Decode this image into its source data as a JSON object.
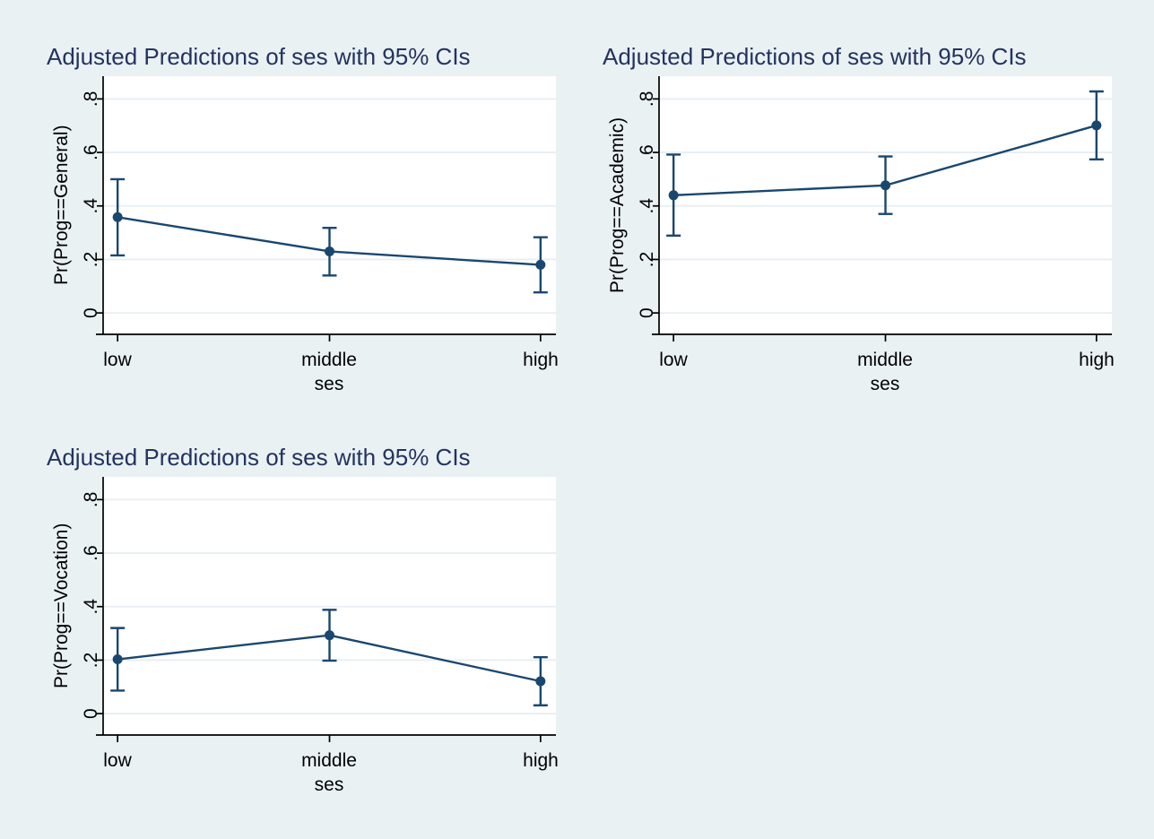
{
  "style": {
    "page_background": "#e9f1f3",
    "plot_background": "#ffffff",
    "grid_color": "#e7eef3",
    "axis_color": "#000000",
    "text_color": "#000000",
    "title_color": "#24335f",
    "series_color": "#1a476f"
  },
  "chart_data": [
    {
      "type": "line",
      "title": "Adjusted Predictions of ses with 95% CIs",
      "ylabel": "Pr(Prog==General)",
      "xlabel": "ses",
      "categories": [
        "low",
        "middle",
        "high"
      ],
      "series": [
        {
          "name": "Adjusted prediction",
          "values": [
            0.358,
            0.23,
            0.18
          ],
          "ci_low": [
            0.215,
            0.14,
            0.077
          ],
          "ci_high": [
            0.5,
            0.318,
            0.283
          ]
        }
      ],
      "ci_level": "95%",
      "yticks": [
        0,
        0.2,
        0.4,
        0.6,
        0.8
      ],
      "ytick_labels": [
        "0",
        ".2",
        ".4",
        ".6",
        ".8"
      ],
      "ylim": [
        -0.08,
        0.885
      ],
      "grid": true,
      "legend": "none",
      "position": "top-left"
    },
    {
      "type": "line",
      "title": "Adjusted Predictions of ses with 95% CIs",
      "ylabel": "Pr(Prog==Academic)",
      "xlabel": "ses",
      "categories": [
        "low",
        "middle",
        "high"
      ],
      "series": [
        {
          "name": "Adjusted prediction",
          "values": [
            0.44,
            0.477,
            0.701
          ],
          "ci_low": [
            0.289,
            0.37,
            0.574
          ],
          "ci_high": [
            0.592,
            0.585,
            0.828
          ]
        }
      ],
      "ci_level": "95%",
      "yticks": [
        0,
        0.2,
        0.4,
        0.6,
        0.8
      ],
      "ytick_labels": [
        "0",
        ".2",
        ".4",
        ".6",
        ".8"
      ],
      "ylim": [
        -0.08,
        0.885
      ],
      "grid": true,
      "legend": "none",
      "position": "top-right"
    },
    {
      "type": "line",
      "title": "Adjusted Predictions of ses with 95% CIs",
      "ylabel": "Pr(Prog==Vocation)",
      "xlabel": "ses",
      "categories": [
        "low",
        "middle",
        "high"
      ],
      "series": [
        {
          "name": "Adjusted prediction",
          "values": [
            0.203,
            0.293,
            0.121
          ],
          "ci_low": [
            0.086,
            0.198,
            0.031
          ],
          "ci_high": [
            0.32,
            0.388,
            0.211
          ]
        }
      ],
      "ci_level": "95%",
      "yticks": [
        0,
        0.2,
        0.4,
        0.6,
        0.8
      ],
      "ytick_labels": [
        "0",
        ".2",
        ".4",
        ".6",
        ".8"
      ],
      "ylim": [
        -0.08,
        0.885
      ],
      "grid": true,
      "legend": "none",
      "position": "bottom-left"
    }
  ]
}
